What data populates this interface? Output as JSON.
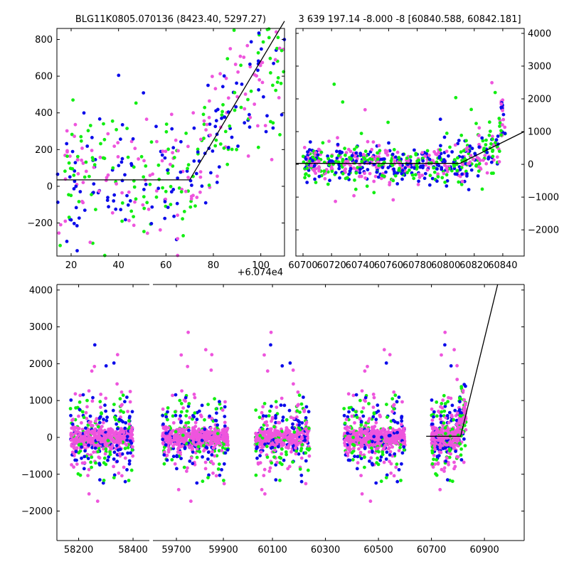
{
  "colors": {
    "blue": "#0b0bea",
    "green": "#12ee12",
    "pink": "#ee55dd",
    "model": "#000000",
    "axes": "#000000"
  },
  "chart_data": [
    {
      "type": "scatter",
      "title": "BLG11K0805.070136 (8423.40, 5297.27)",
      "offset_label": "+6.074e4",
      "xlim": [
        14,
        110
      ],
      "ylim": [
        -380,
        860
      ],
      "xticks": [
        "20",
        "40",
        "60",
        "80",
        "100"
      ],
      "xtick_values": [
        20,
        40,
        60,
        80,
        100
      ],
      "yticks": [
        "−200",
        "0",
        "200",
        "400",
        "600",
        "800"
      ],
      "ytick_values": [
        -200,
        0,
        200,
        400,
        600,
        800
      ],
      "model_line": [
        [
          14,
          35
        ],
        [
          70,
          35
        ],
        [
          110,
          900
        ]
      ]
    },
    {
      "type": "scatter",
      "title": "3 639 197.14 -8.000 -8 [60840.588, 60842.181]",
      "xlim": [
        60695,
        60855
      ],
      "ylim": [
        -2800,
        4150
      ],
      "xticks": [
        "60700",
        "60720",
        "60740",
        "60760",
        "60780",
        "60800",
        "60820",
        "60840"
      ],
      "xtick_values": [
        60700,
        60720,
        60740,
        60760,
        60780,
        60800,
        60820,
        60840
      ],
      "yticks": [
        "−2000",
        "−1000",
        "0",
        "1000",
        "2000",
        "3000",
        "4000"
      ],
      "ytick_values": [
        -2000,
        -1000,
        0,
        1000,
        2000,
        3000,
        4000
      ],
      "model_line": [
        [
          60695,
          30
        ],
        [
          60810,
          30
        ],
        [
          60855,
          1000
        ]
      ]
    },
    {
      "type": "scatter",
      "xticks": [
        "58200",
        "58400",
        "59700",
        "59900",
        "60100",
        "60300",
        "60500",
        "60700",
        "60900"
      ],
      "yticks": [
        "−2000",
        "−1000",
        "0",
        "1000",
        "2000",
        "3000",
        "4000"
      ],
      "ytick_values": [
        -2000,
        -1000,
        0,
        1000,
        2000,
        3000,
        4000
      ],
      "ylim": [
        -2800,
        4150
      ],
      "segments": [
        {
          "xlim": [
            58120,
            58460
          ],
          "xticks": [
            "58200",
            "58400"
          ],
          "xtick_values": [
            58200,
            58400
          ],
          "clusters": [
            [
              58170,
              58400
            ]
          ]
        },
        {
          "xlim": [
            59600,
            60030
          ],
          "xticks": [
            "59700",
            "59900"
          ],
          "xtick_values": [
            59700,
            59900
          ],
          "clusters": [
            [
              59640,
              59920
            ]
          ]
        },
        {
          "xlim": [
            60030,
            61050
          ],
          "xticks": [
            "60100",
            "60300",
            "60500",
            "60700",
            "60900"
          ],
          "xtick_values": [
            60100,
            60300,
            60500,
            60700,
            60900
          ],
          "clusters": [
            [
              60000,
              60240
            ],
            [
              60370,
              60600
            ],
            [
              60700,
              60830
            ]
          ]
        }
      ],
      "model_line": [
        [
          60680,
          30
        ],
        [
          60810,
          30
        ],
        [
          60950,
          4150
        ]
      ]
    }
  ]
}
